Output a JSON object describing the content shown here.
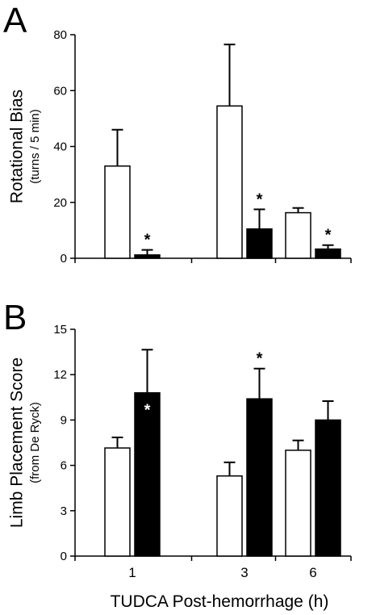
{
  "figure": {
    "x_title": "TUDCA Post-hemorrhage (h)"
  },
  "chart_data": [
    {
      "type": "bar",
      "panel_label": "A",
      "ylabel": "Rotational Bias",
      "ylabel_sub": "(turns / 5 min)",
      "xlabel": "",
      "categories": [
        "1",
        "3",
        "6"
      ],
      "show_x_ticklabels": false,
      "ylim": [
        0,
        80
      ],
      "yticks": [
        0,
        20,
        40,
        60,
        80
      ],
      "grid": false,
      "legend": "none",
      "series": [
        {
          "fill": "#ffffff",
          "values": [
            33,
            54.5,
            16.3
          ],
          "error": [
            13,
            22,
            1.7
          ],
          "significant": [
            false,
            false,
            false
          ]
        },
        {
          "fill": "#000000",
          "values": [
            1.2,
            10.5,
            3.3
          ],
          "error": [
            1.8,
            7,
            1.4
          ],
          "significant": [
            true,
            true,
            true
          ]
        }
      ],
      "asterisk": "*"
    },
    {
      "type": "bar",
      "panel_label": "B",
      "ylabel": "Limb Placement Score",
      "ylabel_sub": "(from De Ryck)",
      "xlabel": "TUDCA Post-hemorrhage (h)",
      "categories": [
        "1",
        "3",
        "6"
      ],
      "show_x_ticklabels": true,
      "ylim": [
        0,
        15
      ],
      "yticks": [
        0,
        3,
        6,
        9,
        12,
        15
      ],
      "grid": false,
      "legend": "none",
      "series": [
        {
          "fill": "#ffffff",
          "values": [
            7.15,
            5.3,
            7.0
          ],
          "error": [
            0.7,
            0.9,
            0.65
          ],
          "significant": [
            false,
            false,
            false
          ]
        },
        {
          "fill": "#000000",
          "values": [
            10.8,
            10.4,
            9.0
          ],
          "error": [
            2.85,
            2.0,
            1.25
          ],
          "significant": [
            true,
            true,
            false
          ]
        }
      ],
      "asterisk": "*"
    }
  ]
}
